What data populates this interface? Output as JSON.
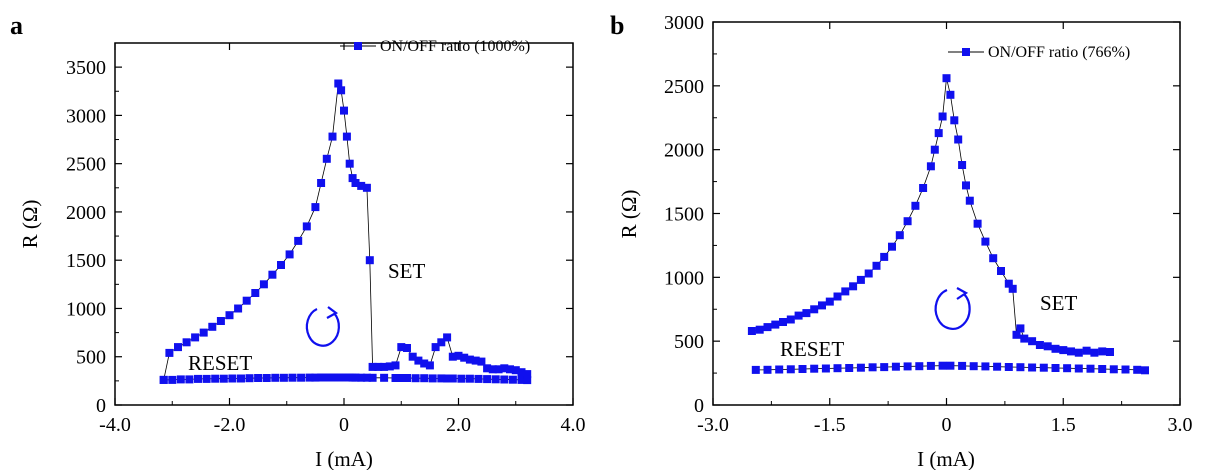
{
  "chart_data": [
    {
      "panel_label": "a",
      "type": "scatter",
      "xlabel": "I (mA)",
      "ylabel": "R (Ω)",
      "xlim": [
        -4.0,
        4.0
      ],
      "ylim": [
        0,
        3750
      ],
      "x_ticks": [
        "-4.0",
        "-2.0",
        "0",
        "2.0",
        "4.0"
      ],
      "x_tick_values": [
        -4.0,
        -2.0,
        0,
        2.0,
        4.0
      ],
      "y_ticks": [
        "0",
        "500",
        "1000",
        "1500",
        "2000",
        "2500",
        "3000",
        "3500"
      ],
      "y_tick_values": [
        0,
        500,
        1000,
        1500,
        2000,
        2500,
        3000,
        3500
      ],
      "legend": "ON/OFF ratio (1000%)",
      "legend_position": "top-right",
      "annotations": [
        "SET",
        "RESET"
      ],
      "color": "#1010ee",
      "series": [
        {
          "x": [
            -3.15,
            -3.0,
            -2.85,
            -2.7,
            -2.55,
            -2.4,
            -2.25,
            -2.1,
            -1.95,
            -1.8,
            -1.65,
            -1.5,
            -1.35,
            -1.2,
            -1.05,
            -0.9,
            -0.75,
            -0.6,
            -0.5,
            -0.4,
            -0.3,
            -0.2,
            -0.1,
            -0.05,
            0.05,
            0.1,
            0.15,
            0.2,
            0.3,
            0.4,
            0.5,
            0.7,
            0.9,
            1.0,
            1.1,
            1.25,
            1.4,
            1.55,
            1.7,
            1.8,
            1.9,
            2.05,
            2.2,
            2.35,
            2.5,
            2.65,
            2.8,
            2.95,
            3.1,
            3.2
          ],
          "y": [
            260,
            260,
            265,
            265,
            270,
            270,
            272,
            272,
            275,
            275,
            278,
            280,
            280,
            282,
            282,
            283,
            283,
            284,
            284,
            285,
            285,
            285,
            285,
            285,
            285,
            285,
            284,
            284,
            283,
            283,
            282,
            282,
            280,
            280,
            280,
            278,
            278,
            276,
            276,
            275,
            274,
            272,
            272,
            270,
            268,
            266,
            264,
            262,
            260,
            258
          ]
        },
        {
          "x": [
            -3.15,
            -3.05,
            -2.9,
            -2.75,
            -2.6,
            -2.45,
            -2.3,
            -2.15,
            -2.0,
            -1.85,
            -1.7,
            -1.55,
            -1.4,
            -1.25,
            -1.1,
            -0.95,
            -0.8,
            -0.65,
            -0.5,
            -0.4,
            -0.3,
            -0.2,
            -0.1,
            -0.05,
            0.0,
            0.05,
            0.1,
            0.15,
            0.2,
            0.3,
            0.4,
            0.45,
            0.5,
            0.6,
            0.7,
            0.8,
            0.9,
            1.0,
            1.1,
            1.2,
            1.3,
            1.4,
            1.5,
            1.6,
            1.7,
            1.8,
            1.9,
            2.0,
            2.1,
            2.2,
            2.3,
            2.4,
            2.5,
            2.6,
            2.7,
            2.8,
            2.9,
            3.0,
            3.1,
            3.2
          ],
          "y": [
            260,
            540,
            600,
            650,
            700,
            750,
            810,
            870,
            930,
            1000,
            1080,
            1160,
            1250,
            1350,
            1450,
            1560,
            1700,
            1850,
            2050,
            2300,
            2550,
            2780,
            3330,
            3260,
            3050,
            2780,
            2500,
            2350,
            2300,
            2270,
            2250,
            1500,
            395,
            395,
            395,
            400,
            410,
            600,
            590,
            500,
            460,
            430,
            410,
            600,
            650,
            700,
            500,
            510,
            490,
            470,
            460,
            450,
            380,
            370,
            370,
            380,
            370,
            360,
            340,
            320
          ]
        }
      ]
    },
    {
      "panel_label": "b",
      "type": "scatter",
      "xlabel": "I (mA)",
      "ylabel": "R (Ω)",
      "xlim": [
        -3.0,
        3.0
      ],
      "ylim": [
        0,
        3000
      ],
      "x_ticks": [
        "-3.0",
        "-1.5",
        "0",
        "1.5",
        "3.0"
      ],
      "x_tick_values": [
        -3.0,
        -1.5,
        0,
        1.5,
        3.0
      ],
      "y_ticks": [
        "0",
        "500",
        "1000",
        "1500",
        "2000",
        "2500",
        "3000"
      ],
      "y_tick_values": [
        0,
        500,
        1000,
        1500,
        2000,
        2500,
        3000
      ],
      "legend": "ON/OFF ratio (766%)",
      "legend_position": "top-right",
      "annotations": [
        "SET",
        "RESET"
      ],
      "color": "#1010ee",
      "series": [
        {
          "x": [
            -2.45,
            -2.3,
            -2.15,
            -2.0,
            -1.85,
            -1.7,
            -1.55,
            -1.4,
            -1.25,
            -1.1,
            -0.95,
            -0.8,
            -0.65,
            -0.5,
            -0.35,
            -0.2,
            -0.05,
            0.05,
            0.2,
            0.35,
            0.5,
            0.65,
            0.8,
            0.95,
            1.1,
            1.25,
            1.4,
            1.55,
            1.7,
            1.85,
            2.0,
            2.15,
            2.3,
            2.45,
            2.55
          ],
          "y": [
            275,
            276,
            278,
            280,
            282,
            284,
            286,
            288,
            290,
            292,
            295,
            297,
            300,
            302,
            304,
            306,
            308,
            308,
            306,
            304,
            302,
            300,
            298,
            296,
            294,
            292,
            290,
            288,
            286,
            284,
            282,
            280,
            278,
            276,
            272
          ]
        },
        {
          "x": [
            -2.5,
            -2.4,
            -2.3,
            -2.2,
            -2.1,
            -2.0,
            -1.9,
            -1.8,
            -1.7,
            -1.6,
            -1.5,
            -1.4,
            -1.3,
            -1.2,
            -1.1,
            -1.0,
            -0.9,
            -0.8,
            -0.7,
            -0.6,
            -0.5,
            -0.4,
            -0.3,
            -0.2,
            -0.15,
            -0.1,
            -0.05,
            0.0,
            0.05,
            0.1,
            0.15,
            0.2,
            0.25,
            0.3,
            0.4,
            0.5,
            0.6,
            0.7,
            0.8,
            0.85,
            0.9,
            0.95,
            1.0,
            1.1,
            1.2,
            1.3,
            1.4,
            1.5,
            1.6,
            1.7,
            1.8,
            1.9,
            2.0,
            2.1
          ],
          "y": [
            580,
            590,
            610,
            630,
            650,
            670,
            700,
            720,
            750,
            780,
            810,
            850,
            890,
            930,
            980,
            1030,
            1090,
            1160,
            1240,
            1330,
            1440,
            1560,
            1700,
            1870,
            2000,
            2130,
            2260,
            2560,
            2430,
            2230,
            2080,
            1880,
            1720,
            1600,
            1420,
            1280,
            1150,
            1050,
            950,
            910,
            550,
            600,
            520,
            500,
            470,
            460,
            440,
            430,
            420,
            410,
            425,
            410,
            420,
            415
          ]
        }
      ]
    }
  ]
}
